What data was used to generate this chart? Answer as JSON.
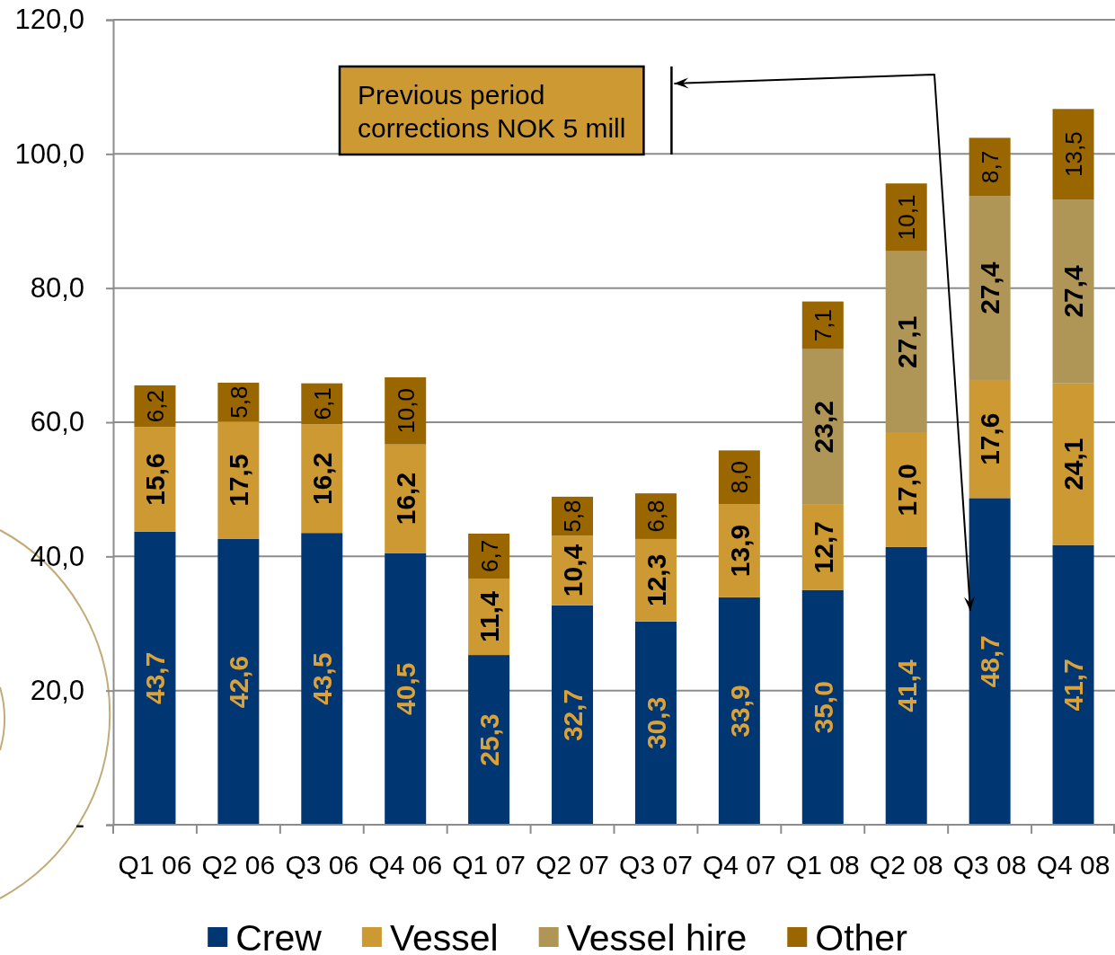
{
  "chart_data": {
    "type": "bar",
    "stacked": true,
    "categories": [
      "Q1 06",
      "Q2 06",
      "Q3 06",
      "Q4 06",
      "Q1 07",
      "Q2 07",
      "Q3 07",
      "Q4 07",
      "Q1 08",
      "Q2 08",
      "Q3 08",
      "Q4 08"
    ],
    "series": [
      {
        "name": "Crew",
        "color": "#003671",
        "values": [
          43.7,
          42.6,
          43.5,
          40.5,
          25.3,
          32.7,
          30.3,
          33.9,
          35.0,
          41.4,
          48.7,
          41.7
        ],
        "value_labels": [
          "43,7",
          "42,6",
          "43,5",
          "40,5",
          "25,3",
          "32,7",
          "30,3",
          "33,9",
          "35,0",
          "41,4",
          "48,7",
          "41,7"
        ]
      },
      {
        "name": "Vessel",
        "color": "#cc9933",
        "values": [
          15.6,
          17.5,
          16.2,
          16.2,
          11.4,
          10.4,
          12.3,
          13.9,
          12.7,
          17.0,
          17.6,
          24.1
        ],
        "value_labels": [
          "15,6",
          "17,5",
          "16,2",
          "16,2",
          "11,4",
          "10,4",
          "12,3",
          "13,9",
          "12,7",
          "17,0",
          "17,6",
          "24,1"
        ]
      },
      {
        "name": "Vessel hire",
        "color": "#b09656",
        "values": [
          null,
          null,
          null,
          null,
          null,
          null,
          null,
          null,
          23.2,
          27.1,
          27.4,
          27.4
        ],
        "value_labels": [
          null,
          null,
          null,
          null,
          null,
          null,
          null,
          null,
          "23,2",
          "27,1",
          "27,4",
          "27,4"
        ]
      },
      {
        "name": "Other",
        "color": "#996600",
        "values": [
          6.2,
          5.8,
          6.1,
          10.0,
          6.7,
          5.8,
          6.8,
          8.0,
          7.1,
          10.1,
          8.7,
          13.5
        ],
        "value_labels": [
          "6,2",
          "5,8",
          "6,1",
          "10,0",
          "6,7",
          "5,8",
          "6,8",
          "8,0",
          "7,1",
          "10,1",
          "8,7",
          "13,5"
        ]
      }
    ],
    "ylim": [
      0,
      120
    ],
    "yticks": [
      {
        "value": 0,
        "label": "-"
      },
      {
        "value": 20,
        "label": "20,0"
      },
      {
        "value": 40,
        "label": "40,0"
      },
      {
        "value": 60,
        "label": "60,0"
      },
      {
        "value": 80,
        "label": "80,0"
      },
      {
        "value": 100,
        "label": "100,0"
      },
      {
        "value": 120,
        "label": "120,0"
      }
    ],
    "grid": "y",
    "legend": "bottom",
    "annotations": [
      "Previous period corrections NOK 5 mill"
    ]
  }
}
